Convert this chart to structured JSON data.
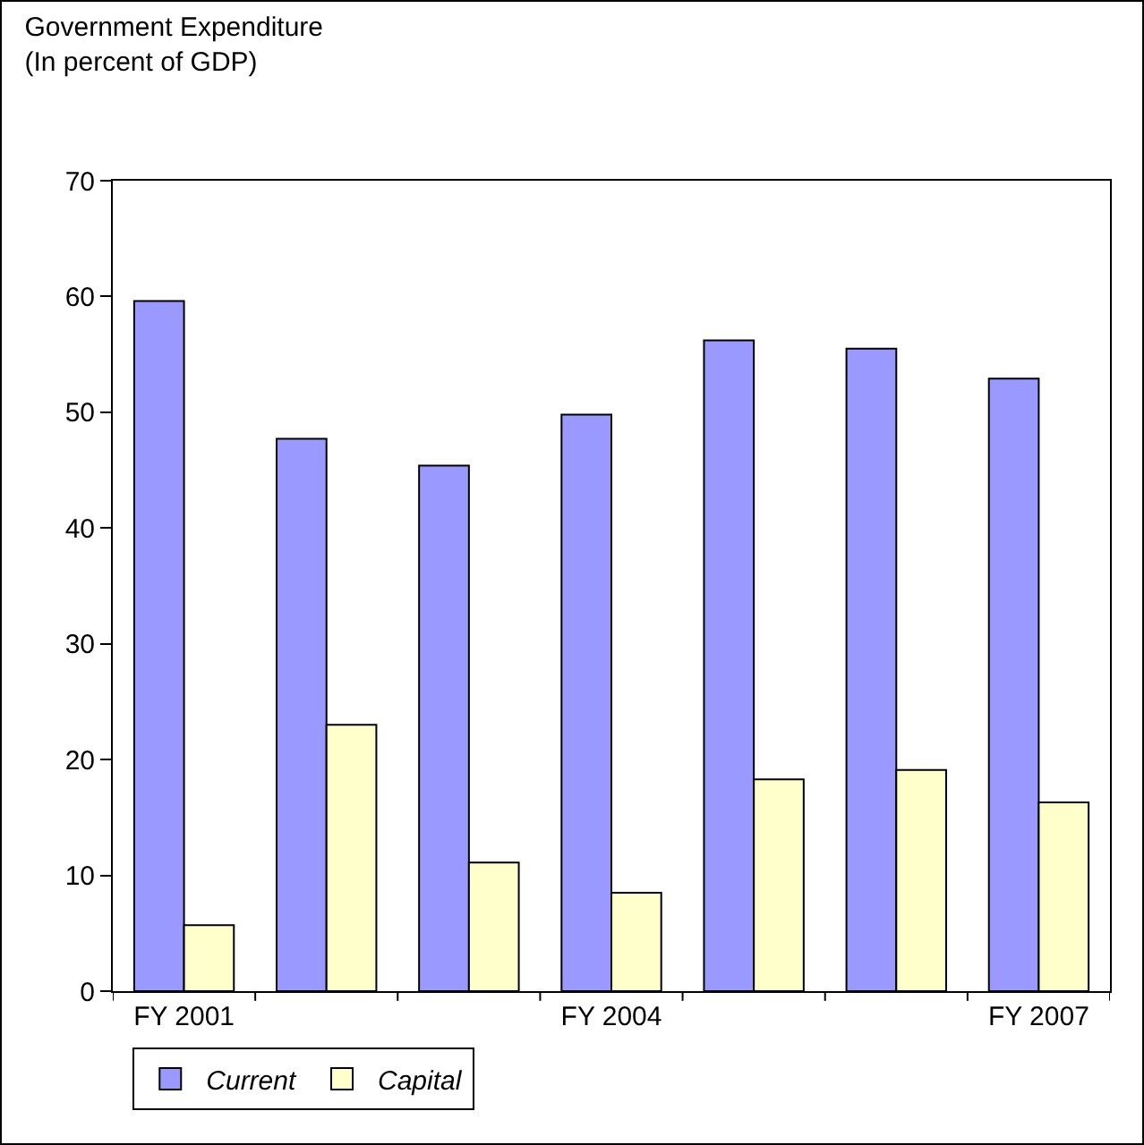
{
  "chart_data": {
    "type": "bar",
    "title": "Government Expenditure",
    "subtitle": "(In percent of GDP)",
    "categories": [
      "FY 2001",
      null,
      null,
      "FY 2004",
      null,
      null,
      "FY 2007"
    ],
    "series": [
      {
        "name": "Current",
        "color": "#9999ff",
        "values": [
          59.6,
          47.7,
          45.4,
          49.8,
          56.2,
          55.5,
          52.9
        ]
      },
      {
        "name": "Capital",
        "color": "#ffffcc",
        "values": [
          5.7,
          23.0,
          11.1,
          8.5,
          18.3,
          19.1,
          16.3
        ]
      }
    ],
    "ylim": [
      0,
      70
    ],
    "yticks": [
      0,
      10,
      20,
      30,
      40,
      50,
      60,
      70
    ],
    "grid": false,
    "legend": "bottom"
  }
}
